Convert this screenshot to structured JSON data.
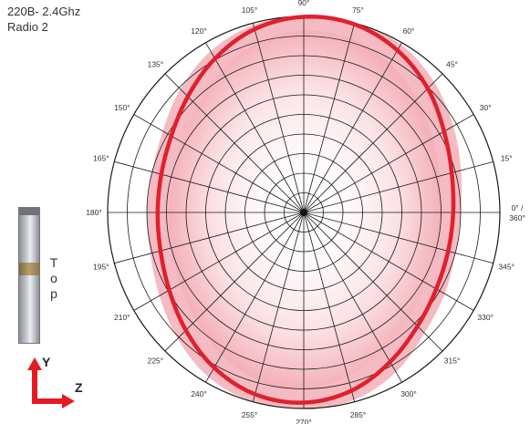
{
  "title": {
    "line1": "220B- 2.4Ghz",
    "line2": "Radio 2"
  },
  "device": {
    "label_letters": [
      "T",
      "o",
      "p"
    ],
    "axis_y": "Y",
    "axis_z": "Z"
  },
  "colors": {
    "pattern": "#e0202e",
    "pattern_fill": "#f2a3ad",
    "grid": "#1a1a1a",
    "axis_arrow": "#e31b23"
  },
  "chart_data": {
    "type": "polar",
    "angle_unit": "deg",
    "angle_ticks": [
      "0° / 360°",
      "15°",
      "30°",
      "45°",
      "60°",
      "75°",
      "90°",
      "105°",
      "120°",
      "135°",
      "150°",
      "165°",
      "180°",
      "195°",
      "210°",
      "225°",
      "240°",
      "255°",
      "270°",
      "285°",
      "300°",
      "315°",
      "330°",
      "345°"
    ],
    "ring_count": 10,
    "radial_lines_every_deg": 15,
    "series": [
      {
        "angles": [
          0,
          15,
          30,
          45,
          60,
          75,
          90,
          105,
          120,
          135,
          150,
          165,
          180,
          195,
          210,
          225,
          240,
          255,
          270,
          285,
          300,
          315,
          330,
          345
        ],
        "values": [
          0.762,
          0.781,
          0.826,
          0.894,
          0.955,
          0.994,
          0.998,
          0.968,
          0.906,
          0.836,
          0.78,
          0.752,
          0.745,
          0.756,
          0.792,
          0.85,
          0.914,
          0.96,
          0.97,
          0.941,
          0.88,
          0.82,
          0.78,
          0.762
        ]
      }
    ],
    "shaded_band": {
      "inner": [
        0.7,
        0.72,
        0.76,
        0.82,
        0.88,
        0.92,
        0.93,
        0.9,
        0.84,
        0.77,
        0.72,
        0.69,
        0.69,
        0.7,
        0.73,
        0.78,
        0.84,
        0.89,
        0.9,
        0.87,
        0.81,
        0.76,
        0.72,
        0.7
      ],
      "outer": [
        0.8,
        0.83,
        0.88,
        0.94,
        0.99,
        1.0,
        1.0,
        0.99,
        0.95,
        0.89,
        0.83,
        0.8,
        0.8,
        0.81,
        0.85,
        0.91,
        0.97,
        1.0,
        1.0,
        0.99,
        0.94,
        0.87,
        0.83,
        0.8
      ]
    }
  }
}
